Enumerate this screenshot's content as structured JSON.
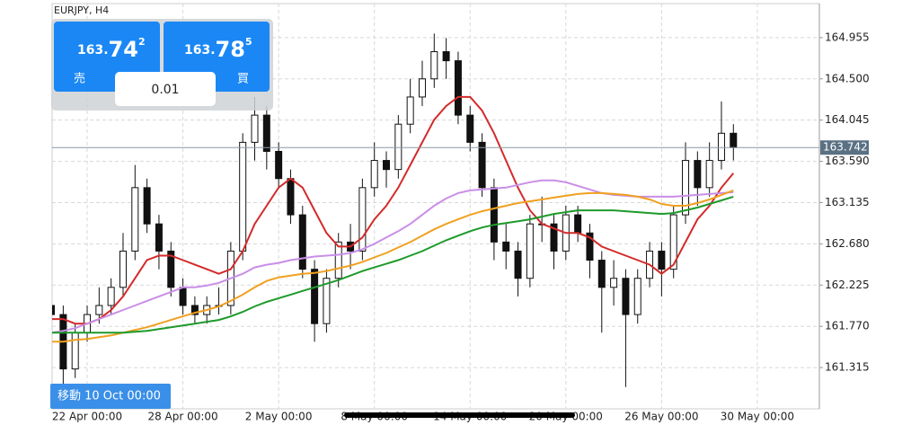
{
  "symbol": "EURJPY, H4",
  "sell": {
    "prefix": "163.",
    "big": "74",
    "small": "2",
    "label": "売"
  },
  "buy": {
    "prefix": "163.",
    "big": "78",
    "small": "5",
    "label": "買"
  },
  "lot": "0.01",
  "goto_button": "移動 10 Oct 00:00",
  "chart_data": {
    "type": "candlestick",
    "categories": [
      null,
      null,
      null,
      "22 Apr 00:00",
      null,
      null,
      null,
      null,
      null,
      null,
      null,
      "28 Apr 00:00",
      null,
      null,
      null,
      null,
      null,
      null,
      null,
      "2 May 00:00",
      null,
      null,
      null,
      null,
      null,
      null,
      null,
      "8 May 00:00",
      null,
      null,
      null,
      null,
      null,
      null,
      null,
      "14 May 00:00",
      null,
      null,
      null,
      null,
      null,
      null,
      null,
      "20 May 00:00",
      null,
      null,
      null,
      null,
      null,
      null,
      null,
      "26 May 00:00",
      null,
      null,
      null,
      null,
      null,
      null,
      null,
      "30 May 00:00"
    ],
    "open": [
      162.0,
      161.9,
      161.3,
      161.7,
      161.9,
      162.0,
      162.2,
      162.6,
      163.3,
      162.9,
      162.6,
      162.2,
      162.0,
      161.9,
      162.0,
      162.0,
      162.6,
      163.8,
      164.1,
      163.7,
      163.4,
      163.0,
      162.4,
      161.8,
      162.3,
      162.7,
      162.6,
      163.3,
      163.6,
      163.5,
      164.0,
      164.3,
      164.5,
      164.8,
      164.7,
      164.1,
      163.8,
      163.3,
      162.7,
      162.6,
      162.3,
      162.9,
      162.9,
      162.6,
      163.0,
      162.8,
      162.5,
      162.2,
      162.3,
      161.9,
      162.3,
      162.6,
      162.4,
      163.0,
      163.6,
      163.3,
      163.6,
      163.9,
      null,
      null
    ],
    "high": [
      162.1,
      162.0,
      161.8,
      162.0,
      162.2,
      162.3,
      162.8,
      163.55,
      163.4,
      163.0,
      162.7,
      162.3,
      162.1,
      162.1,
      162.2,
      162.7,
      163.9,
      164.3,
      164.2,
      163.8,
      163.5,
      163.1,
      162.5,
      162.4,
      162.8,
      162.9,
      163.4,
      163.8,
      163.7,
      164.1,
      164.5,
      164.7,
      165.0,
      164.95,
      164.8,
      164.2,
      163.9,
      163.4,
      162.9,
      162.7,
      163.0,
      163.2,
      163.0,
      163.1,
      163.1,
      162.9,
      162.6,
      162.5,
      162.4,
      162.4,
      162.7,
      162.7,
      163.1,
      163.8,
      163.7,
      163.8,
      164.25,
      164.0,
      null,
      null
    ],
    "low": [
      161.7,
      161.1,
      161.2,
      161.6,
      161.8,
      161.9,
      162.1,
      162.5,
      162.8,
      162.4,
      162.1,
      161.9,
      161.8,
      161.8,
      161.9,
      161.9,
      162.5,
      163.6,
      163.5,
      163.3,
      162.9,
      162.3,
      161.6,
      161.7,
      162.2,
      162.4,
      162.5,
      163.2,
      163.3,
      163.4,
      163.9,
      164.2,
      164.4,
      164.5,
      164.0,
      163.7,
      163.2,
      162.5,
      162.4,
      162.1,
      162.2,
      162.7,
      162.4,
      162.5,
      162.7,
      162.3,
      161.7,
      162.0,
      161.1,
      161.8,
      162.2,
      162.1,
      162.3,
      162.9,
      163.1,
      163.2,
      163.5,
      163.6,
      null,
      null
    ],
    "close": [
      161.9,
      161.3,
      161.7,
      161.9,
      162.0,
      162.2,
      162.6,
      163.3,
      162.9,
      162.6,
      162.2,
      162.0,
      161.9,
      162.0,
      162.0,
      162.6,
      163.8,
      164.1,
      163.7,
      163.4,
      163.0,
      162.4,
      161.8,
      162.3,
      162.7,
      162.6,
      163.3,
      163.6,
      163.5,
      164.0,
      164.3,
      164.5,
      164.8,
      164.7,
      164.1,
      163.8,
      163.3,
      162.7,
      162.6,
      162.3,
      162.9,
      162.9,
      162.6,
      163.0,
      162.8,
      162.5,
      162.2,
      162.3,
      161.9,
      162.3,
      162.6,
      162.4,
      163.0,
      163.6,
      163.3,
      163.6,
      163.9,
      163.742,
      null,
      null
    ],
    "series": [
      {
        "color": "#d42a2a",
        "values": [
          161.85,
          161.85,
          161.8,
          161.8,
          161.85,
          161.95,
          162.1,
          162.3,
          162.5,
          162.55,
          162.55,
          162.5,
          162.45,
          162.4,
          162.35,
          162.4,
          162.6,
          162.9,
          163.1,
          163.3,
          163.4,
          163.3,
          163.05,
          162.8,
          162.65,
          162.65,
          162.75,
          162.95,
          163.1,
          163.3,
          163.55,
          163.8,
          164.05,
          164.2,
          164.3,
          164.3,
          164.15,
          163.9,
          163.6,
          163.3,
          163.05,
          162.9,
          162.85,
          162.8,
          162.8,
          162.75,
          162.65,
          162.6,
          162.55,
          162.5,
          162.45,
          162.35,
          162.45,
          162.7,
          162.95,
          163.1,
          163.3,
          163.46,
          null,
          null
        ]
      },
      {
        "color": "#c98ee8",
        "values": [
          161.7,
          161.72,
          161.75,
          161.8,
          161.85,
          161.9,
          161.95,
          162.0,
          162.05,
          162.1,
          162.15,
          162.2,
          162.2,
          162.22,
          162.25,
          162.3,
          162.35,
          162.42,
          162.45,
          162.47,
          162.5,
          162.52,
          162.54,
          162.55,
          162.56,
          162.58,
          162.62,
          162.68,
          162.75,
          162.82,
          162.9,
          163.0,
          163.1,
          163.18,
          163.24,
          163.27,
          163.28,
          163.29,
          163.3,
          163.33,
          163.36,
          163.38,
          163.38,
          163.36,
          163.32,
          163.28,
          163.24,
          163.22,
          163.21,
          163.2,
          163.2,
          163.2,
          163.2,
          163.21,
          163.22,
          163.23,
          163.24,
          163.25,
          null,
          null
        ]
      },
      {
        "color": "#f0a020",
        "values": [
          161.6,
          161.6,
          161.62,
          161.63,
          161.65,
          161.67,
          161.7,
          161.73,
          161.76,
          161.8,
          161.84,
          161.88,
          161.92,
          161.95,
          161.99,
          162.05,
          162.12,
          162.2,
          162.27,
          162.31,
          162.33,
          162.35,
          162.36,
          162.38,
          162.41,
          162.44,
          162.48,
          162.53,
          162.58,
          162.64,
          162.7,
          162.77,
          162.84,
          162.9,
          162.95,
          163.0,
          163.04,
          163.07,
          163.1,
          163.13,
          163.15,
          163.17,
          163.19,
          163.21,
          163.23,
          163.24,
          163.24,
          163.23,
          163.22,
          163.2,
          163.17,
          163.12,
          163.1,
          163.1,
          163.13,
          163.17,
          163.22,
          163.27,
          null,
          null
        ]
      },
      {
        "color": "#1e9a2a",
        "values": [
          161.7,
          161.7,
          161.7,
          161.7,
          161.7,
          161.7,
          161.7,
          161.71,
          161.72,
          161.74,
          161.76,
          161.78,
          161.8,
          161.82,
          161.84,
          161.88,
          161.93,
          161.99,
          162.04,
          162.08,
          162.12,
          162.16,
          162.2,
          162.24,
          162.28,
          162.33,
          162.38,
          162.42,
          162.46,
          162.5,
          162.55,
          162.6,
          162.66,
          162.72,
          162.77,
          162.82,
          162.86,
          162.89,
          162.91,
          162.93,
          162.95,
          162.98,
          163.01,
          163.03,
          163.05,
          163.05,
          163.05,
          163.05,
          163.04,
          163.03,
          163.02,
          163.01,
          163.02,
          163.05,
          163.08,
          163.12,
          163.16,
          163.2,
          null,
          null
        ]
      }
    ],
    "current_price": 163.742,
    "ylim": [
      160.86,
      165.37
    ],
    "yticks": [
      161.315,
      {
        "value": 161.77,
        "label": "161.770"
      },
      162.225,
      {
        "value": 162.68,
        "label": "162.680"
      },
      163.135,
      {
        "value": 163.59,
        "label": "163.590"
      },
      164.045,
      {
        "value": 164.5,
        "label": "164.500"
      },
      164.955
    ],
    "grid": true
  }
}
